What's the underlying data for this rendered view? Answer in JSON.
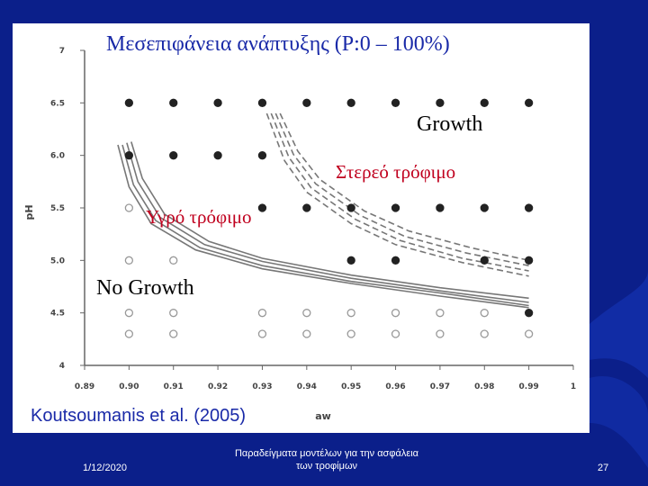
{
  "slide": {
    "title": "Μεσεπιφάνεια ανάπτυξης (P:0 – 100%)",
    "citation": "Koutsoumanis et al. (2005)",
    "footer_date": "1/12/2020",
    "footer_caption": "Παραδείγματα μοντέλων για την ασφάλεια των τροφίμων",
    "page_number": "27",
    "background_color": "#0b1f8a"
  },
  "chart_data": {
    "type": "scatter",
    "xlabel": "aw",
    "ylabel": "pH",
    "xlim": [
      0.89,
      1.0
    ],
    "ylim": [
      4.0,
      7.0
    ],
    "x_ticks": [
      "0.89",
      "0.90",
      "0.91",
      "0.92",
      "0.93",
      "0.94",
      "0.95",
      "0.96",
      "0.97",
      "0.98",
      "0.99",
      "1"
    ],
    "y_ticks": [
      "4",
      "4.5",
      "5.0",
      "5.5",
      "6.0",
      "6.5",
      "7"
    ],
    "grid": false,
    "annotations": {
      "growth": "Growth",
      "no_growth": "No Growth",
      "solid_medium": "Στερεό τρόφιμο",
      "liquid_medium": "Υγρό τρόφιμο"
    },
    "series": [
      {
        "marker": "filled-circle",
        "points": [
          [
            0.9,
            6.5
          ],
          [
            0.91,
            6.5
          ],
          [
            0.92,
            6.5
          ],
          [
            0.93,
            6.5
          ],
          [
            0.94,
            6.5
          ],
          [
            0.95,
            6.5
          ],
          [
            0.96,
            6.5
          ],
          [
            0.97,
            6.5
          ],
          [
            0.98,
            6.5
          ],
          [
            0.99,
            6.5
          ],
          [
            0.9,
            6.0
          ],
          [
            0.91,
            6.0
          ],
          [
            0.92,
            6.0
          ],
          [
            0.93,
            6.0
          ],
          [
            0.93,
            5.5
          ],
          [
            0.94,
            5.5
          ],
          [
            0.95,
            5.5
          ],
          [
            0.96,
            5.5
          ],
          [
            0.97,
            5.5
          ],
          [
            0.98,
            5.5
          ],
          [
            0.99,
            5.5
          ],
          [
            0.95,
            5.0
          ],
          [
            0.96,
            5.0
          ],
          [
            0.98,
            5.0
          ],
          [
            0.99,
            5.0
          ],
          [
            0.99,
            4.5
          ]
        ]
      },
      {
        "marker": "open-circle",
        "points": [
          [
            0.9,
            5.5
          ],
          [
            0.9,
            5.0
          ],
          [
            0.91,
            5.0
          ],
          [
            0.9,
            4.5
          ],
          [
            0.91,
            4.5
          ],
          [
            0.93,
            4.5
          ],
          [
            0.94,
            4.5
          ],
          [
            0.95,
            4.5
          ],
          [
            0.96,
            4.5
          ],
          [
            0.97,
            4.5
          ],
          [
            0.98,
            4.5
          ],
          [
            0.9,
            4.3
          ],
          [
            0.91,
            4.3
          ],
          [
            0.93,
            4.3
          ],
          [
            0.94,
            4.3
          ],
          [
            0.95,
            4.3
          ],
          [
            0.96,
            4.3
          ],
          [
            0.97,
            4.3
          ],
          [
            0.98,
            4.3
          ],
          [
            0.99,
            4.3
          ]
        ]
      },
      {
        "style": "solid",
        "lines": [
          [
            [
              0.8975,
              6.1
            ],
            [
              0.9,
              5.7
            ],
            [
              0.905,
              5.35
            ],
            [
              0.915,
              5.1
            ],
            [
              0.93,
              4.92
            ],
            [
              0.95,
              4.78
            ],
            [
              0.97,
              4.66
            ],
            [
              0.99,
              4.55
            ]
          ],
          [
            [
              0.8985,
              6.1
            ],
            [
              0.901,
              5.72
            ],
            [
              0.906,
              5.38
            ],
            [
              0.916,
              5.12
            ],
            [
              0.93,
              4.95
            ],
            [
              0.95,
              4.8
            ],
            [
              0.97,
              4.69
            ],
            [
              0.99,
              4.57
            ]
          ],
          [
            [
              0.8995,
              6.12
            ],
            [
              0.902,
              5.75
            ],
            [
              0.907,
              5.41
            ],
            [
              0.917,
              5.15
            ],
            [
              0.93,
              4.99
            ],
            [
              0.95,
              4.83
            ],
            [
              0.97,
              4.71
            ],
            [
              0.99,
              4.6
            ]
          ],
          [
            [
              0.9005,
              6.13
            ],
            [
              0.903,
              5.78
            ],
            [
              0.908,
              5.44
            ],
            [
              0.918,
              5.18
            ],
            [
              0.93,
              5.02
            ],
            [
              0.95,
              4.86
            ],
            [
              0.97,
              4.74
            ],
            [
              0.99,
              4.64
            ]
          ]
        ]
      },
      {
        "style": "dashed",
        "lines": [
          [
            [
              0.931,
              6.4
            ],
            [
              0.935,
              5.95
            ],
            [
              0.94,
              5.65
            ],
            [
              0.95,
              5.35
            ],
            [
              0.96,
              5.15
            ],
            [
              0.975,
              4.98
            ],
            [
              0.99,
              4.85
            ]
          ],
          [
            [
              0.932,
              6.4
            ],
            [
              0.936,
              5.98
            ],
            [
              0.941,
              5.69
            ],
            [
              0.951,
              5.39
            ],
            [
              0.961,
              5.19
            ],
            [
              0.975,
              5.02
            ],
            [
              0.99,
              4.9
            ]
          ],
          [
            [
              0.933,
              6.4
            ],
            [
              0.937,
              6.01
            ],
            [
              0.942,
              5.73
            ],
            [
              0.952,
              5.43
            ],
            [
              0.962,
              5.23
            ],
            [
              0.976,
              5.07
            ],
            [
              0.99,
              4.95
            ]
          ],
          [
            [
              0.934,
              6.4
            ],
            [
              0.938,
              6.04
            ],
            [
              0.943,
              5.77
            ],
            [
              0.953,
              5.47
            ],
            [
              0.963,
              5.28
            ],
            [
              0.977,
              5.12
            ],
            [
              0.99,
              5.0
            ]
          ]
        ]
      }
    ]
  }
}
